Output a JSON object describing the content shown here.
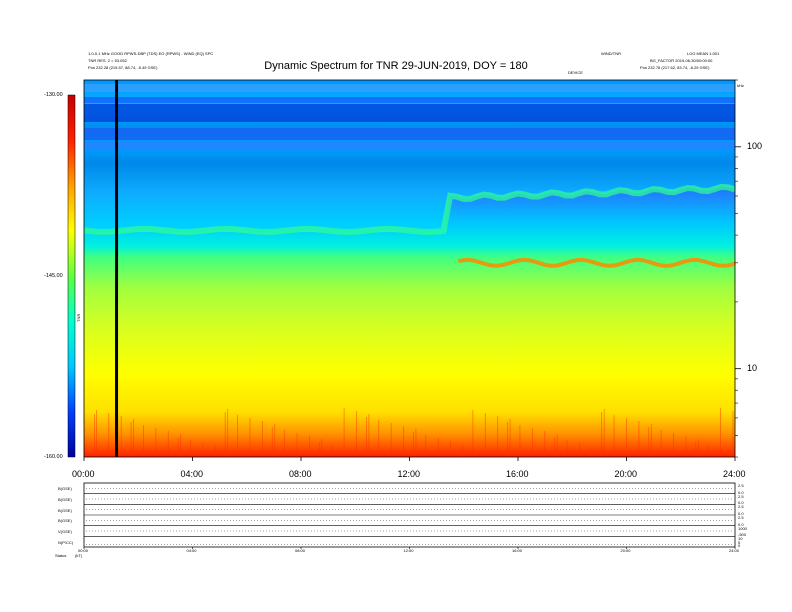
{
  "header": {
    "title": "Dynamic Spectrum for TNR 29-JUN-2019, DOY = 180",
    "left_line1": "1.0-0.1 MHz GOOD RPWS-DBP (TDS) EO (RPWS) - WIND (EQ) SPC",
    "left_line2": "TNR RES. 2 = 53.052",
    "left_pos_label": "Pos",
    "left_pos_value": "232.28 (215.57, 88.74, -5.49 GSE)",
    "right_line1": "WIND/TNR",
    "right_line2": "LOG MEAN 1:001",
    "right_line3": "BG_FACTOR 2019-06-30/00:00:00",
    "right_pos_label": "Pos",
    "right_pos_value": "232.76 (217.62, 83.74, -6.29 GSE)",
    "mid_right": "DEVICE",
    "khz_label": "kHz"
  },
  "chart_data": {
    "type": "heatmap",
    "title": "Dynamic Spectrum for TNR 29-JUN-2019, DOY = 180",
    "x_ticks": [
      "00:00",
      "04:00",
      "08:00",
      "12:00",
      "16:00",
      "20:00",
      "24:00"
    ],
    "x_range_hours": [
      0,
      24
    ],
    "y_scale": "log",
    "y_unit": "kHz",
    "y_ticks": [
      "100",
      "10"
    ],
    "y_range_khz": [
      4,
      200
    ],
    "colorbar": {
      "label": "TNR",
      "ticks": [
        "-130.00",
        "-145.00",
        "-160.00"
      ],
      "range": [
        -160,
        -130
      ],
      "colors": [
        "#0000a0",
        "#0040ff",
        "#00c8ff",
        "#00ffd0",
        "#60ff40",
        "#ffff00",
        "#ffa000",
        "#ff2000",
        "#c80000"
      ]
    },
    "data_gap_marker_hour": 1.2,
    "band_edges_khz": {
      "background_to_green_early": 42,
      "background_to_green_late": 65,
      "plasma_line_late": 30
    }
  },
  "panels": {
    "labels": [
      "B(GSE)",
      "B(GSE)",
      "B(GSE)",
      "B(GSE)",
      "V(GSE)",
      "N(P/CC)"
    ],
    "right_ticks": [
      [
        "2.5",
        "0.0"
      ],
      [
        "2.5",
        "0.0"
      ],
      [
        "2.5",
        "0.0"
      ],
      [
        "2.5",
        "0.0"
      ],
      [
        "1000",
        "-500"
      ],
      [
        "10",
        "5",
        "0"
      ]
    ],
    "x_ticks": [
      "00:00",
      "04:00",
      "08:00",
      "12:00",
      "16:00",
      "20:00",
      "24:00"
    ],
    "footer_label": "Status",
    "footer_value": "(kT)"
  }
}
